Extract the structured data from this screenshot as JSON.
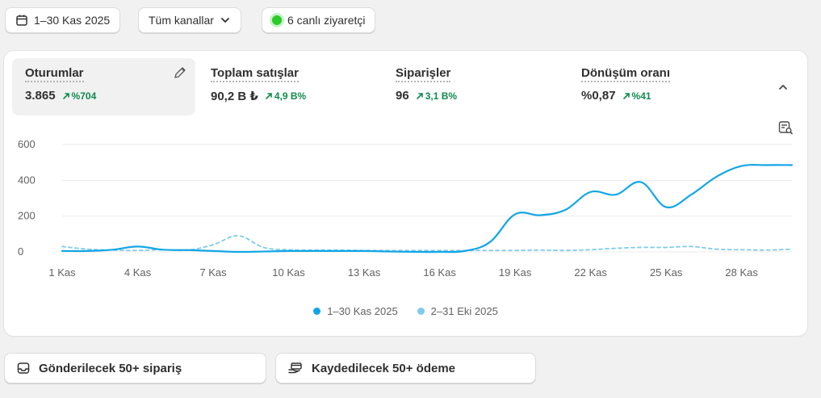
{
  "toolbar": {
    "date_range": "1–30 Kas 2025",
    "channels": "Tüm kanallar",
    "live_visitors": "6 canlı ziyaretçi"
  },
  "metrics": [
    {
      "label": "Oturumlar",
      "value": "3.865",
      "change": "%704"
    },
    {
      "label": "Toplam satışlar",
      "value": "90,2 B ₺",
      "change": "4,9 B%"
    },
    {
      "label": "Siparişler",
      "value": "96",
      "change": "3,1 B%"
    },
    {
      "label": "Dönüşüm oranı",
      "value": "%0,87",
      "change": "%41"
    }
  ],
  "colors": {
    "current": "#13a6e6",
    "previous": "#7fcbee",
    "positive": "#0f8a4d",
    "live": "#29cc29"
  },
  "chart_data": {
    "type": "line",
    "x": [
      "1 Kas",
      "2 Kas",
      "3 Kas",
      "4 Kas",
      "5 Kas",
      "6 Kas",
      "7 Kas",
      "8 Kas",
      "9 Kas",
      "10 Kas",
      "11 Kas",
      "12 Kas",
      "13 Kas",
      "14 Kas",
      "15 Kas",
      "16 Kas",
      "17 Kas",
      "18 Kas",
      "19 Kas",
      "20 Kas",
      "21 Kas",
      "22 Kas",
      "23 Kas",
      "24 Kas",
      "25 Kas",
      "26 Kas",
      "27 Kas",
      "28 Kas",
      "29 Kas",
      "30 Kas"
    ],
    "x_tick_labels": [
      "1 Kas",
      "4 Kas",
      "7 Kas",
      "10 Kas",
      "13 Kas",
      "16 Kas",
      "19 Kas",
      "22 Kas",
      "25 Kas",
      "28 Kas"
    ],
    "y_ticks": [
      "0",
      "200",
      "400",
      "600"
    ],
    "ylim": [
      0,
      600
    ],
    "grid": true,
    "legend_position": "bottom",
    "series": [
      {
        "name": "1–30 Kas 2025",
        "style": "solid",
        "values": [
          5,
          5,
          12,
          30,
          12,
          10,
          5,
          0,
          2,
          5,
          5,
          5,
          5,
          2,
          0,
          0,
          5,
          55,
          210,
          205,
          235,
          335,
          320,
          390,
          250,
          320,
          420,
          480,
          485,
          485
        ]
      },
      {
        "name": "2–31 Eki 2025",
        "style": "dashed",
        "values": [
          30,
          15,
          10,
          8,
          12,
          10,
          40,
          90,
          25,
          12,
          10,
          10,
          8,
          8,
          8,
          8,
          8,
          8,
          8,
          10,
          8,
          12,
          20,
          25,
          25,
          30,
          15,
          12,
          10,
          15
        ]
      }
    ]
  }
}
